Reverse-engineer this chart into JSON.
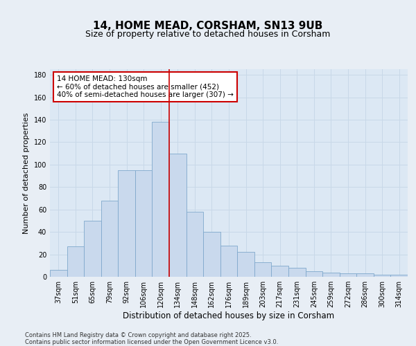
{
  "title": "14, HOME MEAD, CORSHAM, SN13 9UB",
  "subtitle": "Size of property relative to detached houses in Corsham",
  "xlabel": "Distribution of detached houses by size in Corsham",
  "ylabel": "Number of detached properties",
  "categories": [
    "37sqm",
    "51sqm",
    "65sqm",
    "79sqm",
    "92sqm",
    "106sqm",
    "120sqm",
    "134sqm",
    "148sqm",
    "162sqm",
    "176sqm",
    "189sqm",
    "203sqm",
    "217sqm",
    "231sqm",
    "245sqm",
    "259sqm",
    "272sqm",
    "286sqm",
    "300sqm",
    "314sqm"
  ],
  "values": [
    6,
    27,
    50,
    68,
    95,
    95,
    138,
    110,
    58,
    40,
    28,
    22,
    13,
    10,
    8,
    5,
    4,
    3,
    3,
    2,
    2
  ],
  "bar_color": "#c9d9ed",
  "bar_edge_color": "#7fa8cc",
  "vline_color": "#cc0000",
  "vline_x": 6.5,
  "annotation_text_line1": "14 HOME MEAD: 130sqm",
  "annotation_text_line2": "← 60% of detached houses are smaller (452)",
  "annotation_text_line3": "40% of semi-detached houses are larger (307) →",
  "ylim": [
    0,
    185
  ],
  "yticks": [
    0,
    20,
    40,
    60,
    80,
    100,
    120,
    140,
    160,
    180
  ],
  "background_color": "#e8eef5",
  "plot_bg_color": "#dce8f4",
  "grid_color": "#c8d8e8",
  "footer_line1": "Contains HM Land Registry data © Crown copyright and database right 2025.",
  "footer_line2": "Contains public sector information licensed under the Open Government Licence v3.0.",
  "title_fontsize": 11,
  "subtitle_fontsize": 9,
  "xlabel_fontsize": 8.5,
  "ylabel_fontsize": 8,
  "tick_fontsize": 7,
  "footer_fontsize": 6,
  "annotation_fontsize": 7.5
}
